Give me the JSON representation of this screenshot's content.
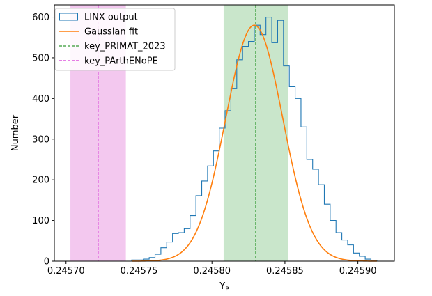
{
  "chart_data": {
    "type": "histogram",
    "xlabel_main": "Y",
    "xlabel_sub": "P",
    "ylabel": "Number",
    "xlim": [
      0.245692,
      0.245925
    ],
    "ylim": [
      0,
      630
    ],
    "x_ticks": [
      0.2457,
      0.24575,
      0.2458,
      0.24585,
      0.2459
    ],
    "x_tick_labels": [
      "0.24570",
      "0.24575",
      "0.24580",
      "0.24585",
      "0.24590"
    ],
    "y_ticks": [
      0,
      100,
      200,
      300,
      400,
      500,
      600
    ],
    "y_tick_labels": [
      "0",
      "100",
      "200",
      "300",
      "400",
      "500",
      "600"
    ],
    "legend": [
      {
        "label": "LINX output",
        "kind": "hist",
        "color": "#1f77b4"
      },
      {
        "label": "Gaussian fit",
        "kind": "line",
        "color": "#ff7f0e"
      },
      {
        "label": "key_PRIMAT_2023",
        "kind": "dashed",
        "color": "#008000"
      },
      {
        "label": "key_PArthENoPE",
        "kind": "dashed",
        "color": "#cc00cc"
      }
    ],
    "legend_position": "upper-left",
    "histogram": {
      "name": "LINX output",
      "color": "#1f77b4",
      "bin_edges": [
        0.245745,
        0.245749,
        0.245753,
        0.245757,
        0.245761,
        0.245765,
        0.245769,
        0.245773,
        0.245777,
        0.245781,
        0.245785,
        0.245789,
        0.245793,
        0.245797,
        0.245801,
        0.245805,
        0.245809,
        0.245813,
        0.245817,
        0.245821,
        0.245825,
        0.245829,
        0.245833,
        0.245837,
        0.245841,
        0.245845,
        0.245849,
        0.245853,
        0.245857,
        0.245861,
        0.245865,
        0.245869,
        0.245873,
        0.245877,
        0.245881,
        0.245885,
        0.245889,
        0.245893,
        0.245897,
        0.245901,
        0.245905,
        0.245909,
        0.245913
      ],
      "counts": [
        3,
        3,
        5,
        9,
        17,
        33,
        47,
        68,
        70,
        80,
        112,
        161,
        197,
        234,
        271,
        327,
        370,
        424,
        495,
        528,
        540,
        580,
        557,
        600,
        537,
        592,
        480,
        429,
        400,
        330,
        250,
        226,
        188,
        140,
        100,
        70,
        52,
        40,
        20,
        12,
        5,
        2
      ]
    },
    "gaussian_fit": {
      "name": "Gaussian fit",
      "color": "#ff7f0e",
      "amplitude": 580,
      "mean": 0.245829,
      "sigma": 1.95e-05,
      "x_range": [
        0.245745,
        0.245913
      ]
    },
    "bands": [
      {
        "name": "key_PRIMAT_2023",
        "center": 0.24583,
        "low": 0.245808,
        "high": 0.245852,
        "color": "#008000",
        "fill_color": "#c9e6cb"
      },
      {
        "name": "key_PArthENoPE",
        "center": 0.245722,
        "low": 0.245703,
        "high": 0.245741,
        "color": "#cc00cc",
        "fill_color": "#f3c8ef"
      }
    ]
  }
}
